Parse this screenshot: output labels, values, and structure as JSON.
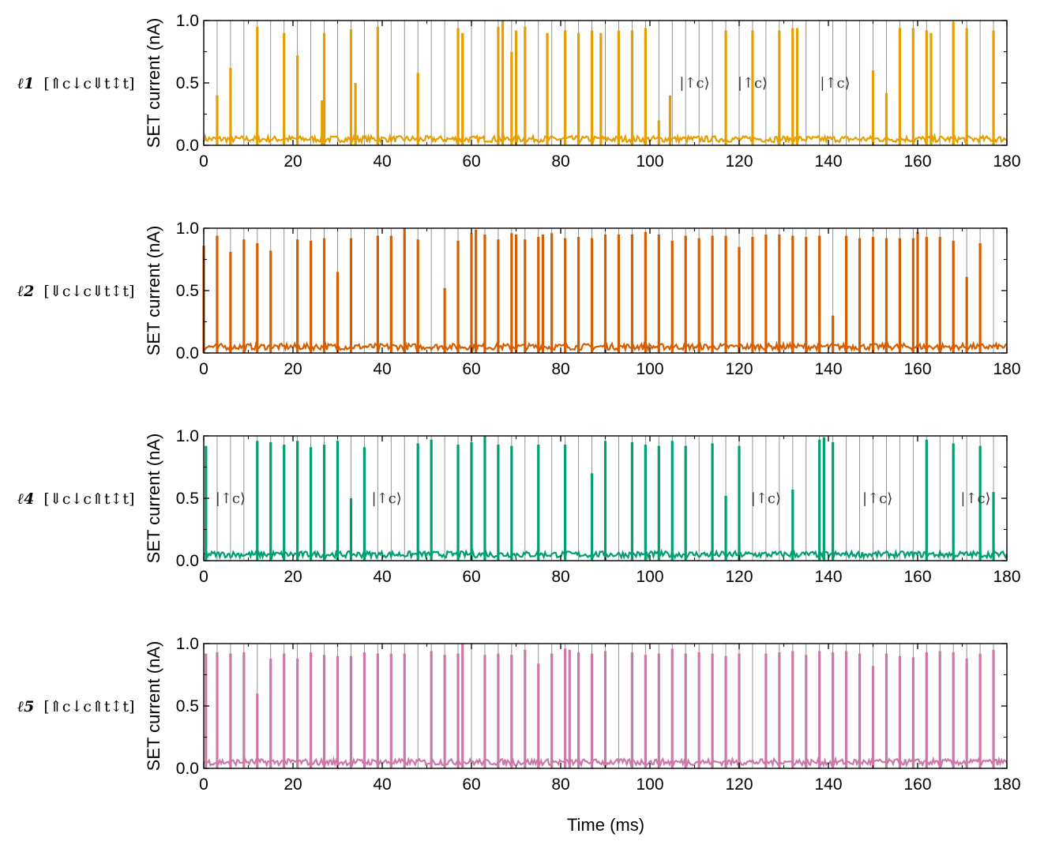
{
  "chart_data": {
    "type": "line",
    "xlabel": "Time (ms)",
    "ylabel": "SET current (nA)",
    "xlim": [
      0,
      180
    ],
    "ylim": [
      0,
      1.0
    ],
    "xticks": [
      0,
      20,
      40,
      60,
      80,
      100,
      120,
      140,
      160,
      180
    ],
    "xtick_labels": [
      "0",
      "20",
      "40",
      "60",
      "80",
      "100",
      "120",
      "140",
      "160",
      "180"
    ],
    "yticks": [
      0,
      0.5,
      1.0
    ],
    "ytick_labels": [
      "0.0",
      "0.5",
      "1.0"
    ],
    "pulse_markers_ms": [
      0,
      3,
      6,
      9,
      12,
      15,
      18,
      21,
      24,
      27,
      30,
      33,
      36,
      39,
      42,
      45,
      48,
      51,
      54,
      57,
      60,
      63,
      66,
      69,
      72,
      75,
      78,
      81,
      84,
      87,
      90,
      93,
      96,
      99,
      102,
      105,
      108,
      111,
      114,
      117,
      120,
      123,
      126,
      129,
      132,
      135,
      138,
      141,
      144,
      147,
      150,
      153,
      156,
      159,
      162,
      165,
      168,
      171,
      174,
      177,
      180
    ],
    "baseline_nA": 0.05,
    "panels": [
      {
        "label_main": "ℓ1",
        "label_state": "[⇑c↓c⇓t↕t]",
        "color": "#E69F00",
        "spikes": [
          [
            3,
            0.4
          ],
          [
            6,
            0.62
          ],
          [
            12,
            0.95
          ],
          [
            18,
            0.9
          ],
          [
            21,
            0.72
          ],
          [
            26.5,
            0.36
          ],
          [
            27,
            0.9
          ],
          [
            33,
            0.93
          ],
          [
            34,
            0.5
          ],
          [
            39,
            0.95
          ],
          [
            48,
            0.58
          ],
          [
            57,
            0.94
          ],
          [
            58,
            0.9
          ],
          [
            66,
            0.95
          ],
          [
            67,
            1.0
          ],
          [
            69,
            0.75
          ],
          [
            70,
            0.92
          ],
          [
            72,
            0.95
          ],
          [
            77,
            0.9
          ],
          [
            81,
            0.92
          ],
          [
            84,
            0.9
          ],
          [
            87,
            0.92
          ],
          [
            89,
            0.9
          ],
          [
            93,
            0.92
          ],
          [
            96,
            0.92
          ],
          [
            99,
            0.94
          ],
          [
            102,
            0.2
          ],
          [
            104.5,
            0.4
          ],
          [
            117,
            0.92
          ],
          [
            123,
            0.92
          ],
          [
            129,
            0.92
          ],
          [
            132,
            0.94
          ],
          [
            133,
            0.94
          ],
          [
            150,
            0.6
          ],
          [
            153,
            0.42
          ],
          [
            156,
            0.94
          ],
          [
            159,
            0.94
          ],
          [
            162,
            0.92
          ],
          [
            163,
            0.9
          ],
          [
            168,
            0.99
          ],
          [
            171,
            0.94
          ],
          [
            177,
            0.92
          ]
        ],
        "annotations": [
          {
            "text": "|↑c⟩",
            "x": 110,
            "y": 0.5
          },
          {
            "text": "|↑c⟩",
            "x": 123,
            "y": 0.5
          },
          {
            "text": "|↑c⟩",
            "x": 141.5,
            "y": 0.5
          }
        ]
      },
      {
        "label_main": "ℓ2",
        "label_state": "[⇓c↓c⇓t↕t]",
        "color": "#D55E00",
        "spikes": [
          [
            0,
            0.86
          ],
          [
            3,
            0.94
          ],
          [
            6,
            0.81
          ],
          [
            9,
            0.91
          ],
          [
            12,
            0.88
          ],
          [
            15,
            0.82
          ],
          [
            21,
            0.91
          ],
          [
            24,
            0.9
          ],
          [
            27,
            0.92
          ],
          [
            30,
            0.65
          ],
          [
            33,
            0.92
          ],
          [
            39,
            0.94
          ],
          [
            42,
            0.94
          ],
          [
            45,
            1.0
          ],
          [
            48,
            0.91
          ],
          [
            54,
            0.52
          ],
          [
            57,
            0.9
          ],
          [
            60,
            0.96
          ],
          [
            61,
            0.99
          ],
          [
            63,
            0.95
          ],
          [
            66,
            0.91
          ],
          [
            69,
            0.96
          ],
          [
            70,
            0.95
          ],
          [
            72,
            0.91
          ],
          [
            75,
            0.93
          ],
          [
            76,
            0.95
          ],
          [
            78,
            0.96
          ],
          [
            81,
            0.92
          ],
          [
            84,
            0.93
          ],
          [
            87,
            0.92
          ],
          [
            90,
            0.95
          ],
          [
            93,
            0.95
          ],
          [
            96,
            0.95
          ],
          [
            99,
            0.97
          ],
          [
            102,
            0.95
          ],
          [
            105,
            0.9
          ],
          [
            108,
            0.94
          ],
          [
            111,
            0.92
          ],
          [
            114,
            0.94
          ],
          [
            117,
            0.94
          ],
          [
            120,
            0.85
          ],
          [
            123,
            0.93
          ],
          [
            126,
            0.95
          ],
          [
            129,
            0.95
          ],
          [
            132,
            0.94
          ],
          [
            135,
            0.93
          ],
          [
            138,
            0.94
          ],
          [
            141,
            0.3
          ],
          [
            144,
            0.94
          ],
          [
            147,
            0.92
          ],
          [
            150,
            0.93
          ],
          [
            153,
            0.92
          ],
          [
            156,
            0.92
          ],
          [
            159,
            0.92
          ],
          [
            160,
            0.97
          ],
          [
            162,
            0.93
          ],
          [
            165,
            0.93
          ],
          [
            168,
            0.9
          ],
          [
            171,
            0.61
          ],
          [
            174,
            0.88
          ]
        ],
        "annotations": []
      },
      {
        "label_main": "ℓ4",
        "label_state": "[⇓c↓c⇑t↕t]",
        "color": "#009E73",
        "spikes": [
          [
            0.5,
            0.92
          ],
          [
            12,
            0.96
          ],
          [
            15,
            0.95
          ],
          [
            18,
            0.93
          ],
          [
            21,
            0.96
          ],
          [
            24,
            0.91
          ],
          [
            27,
            0.93
          ],
          [
            30,
            0.96
          ],
          [
            33,
            0.5
          ],
          [
            36,
            0.91
          ],
          [
            48,
            0.94
          ],
          [
            51,
            0.97
          ],
          [
            57,
            0.93
          ],
          [
            60,
            0.95
          ],
          [
            63,
            1.0
          ],
          [
            66,
            0.93
          ],
          [
            69,
            0.92
          ],
          [
            75,
            0.93
          ],
          [
            81,
            0.93
          ],
          [
            87,
            0.7
          ],
          [
            90,
            0.96
          ],
          [
            96,
            0.95
          ],
          [
            99,
            0.93
          ],
          [
            102,
            0.92
          ],
          [
            105,
            0.96
          ],
          [
            108,
            0.92
          ],
          [
            114,
            0.94
          ],
          [
            117,
            0.52
          ],
          [
            120,
            0.92
          ],
          [
            132,
            0.57
          ],
          [
            138,
            0.97
          ],
          [
            139,
            0.99
          ],
          [
            141,
            0.95
          ],
          [
            162,
            0.97
          ],
          [
            168,
            0.94
          ],
          [
            174,
            0.92
          ],
          [
            177,
            0.55
          ]
        ],
        "annotations": [
          {
            "text": "|↑c⟩",
            "x": 6,
            "y": 0.5
          },
          {
            "text": "|↑c⟩",
            "x": 41,
            "y": 0.5
          },
          {
            "text": "|↑c⟩",
            "x": 126,
            "y": 0.5
          },
          {
            "text": "|↑c⟩",
            "x": 151,
            "y": 0.5
          },
          {
            "text": "|↑c⟩",
            "x": 173,
            "y": 0.5
          }
        ]
      },
      {
        "label_main": "ℓ5",
        "label_state": "[⇑c↓c⇑t↕t]",
        "color": "#CC79A7",
        "spikes": [
          [
            0.5,
            0.92
          ],
          [
            3,
            0.93
          ],
          [
            6,
            0.92
          ],
          [
            9,
            0.93
          ],
          [
            12,
            0.6
          ],
          [
            15,
            0.88
          ],
          [
            18,
            0.92
          ],
          [
            21,
            0.88
          ],
          [
            24,
            0.93
          ],
          [
            27,
            0.91
          ],
          [
            30,
            0.9
          ],
          [
            33,
            0.9
          ],
          [
            36,
            0.93
          ],
          [
            39,
            0.92
          ],
          [
            42,
            0.92
          ],
          [
            45,
            0.92
          ],
          [
            51,
            0.94
          ],
          [
            54,
            0.91
          ],
          [
            57,
            0.92
          ],
          [
            58,
            1.0
          ],
          [
            63,
            0.91
          ],
          [
            66,
            0.92
          ],
          [
            69,
            0.91
          ],
          [
            72,
            0.95
          ],
          [
            75,
            0.84
          ],
          [
            78,
            0.92
          ],
          [
            81,
            0.96
          ],
          [
            82,
            0.95
          ],
          [
            84,
            0.93
          ],
          [
            87,
            0.92
          ],
          [
            90,
            0.94
          ],
          [
            96,
            0.93
          ],
          [
            99,
            0.91
          ],
          [
            102,
            0.92
          ],
          [
            105,
            0.96
          ],
          [
            108,
            0.92
          ],
          [
            111,
            0.93
          ],
          [
            114,
            0.92
          ],
          [
            117,
            0.9
          ],
          [
            120,
            0.92
          ],
          [
            126,
            0.92
          ],
          [
            129,
            0.93
          ],
          [
            132,
            0.94
          ],
          [
            135,
            0.91
          ],
          [
            138,
            0.94
          ],
          [
            141,
            0.93
          ],
          [
            144,
            0.94
          ],
          [
            147,
            0.92
          ],
          [
            150,
            0.82
          ],
          [
            153,
            0.92
          ],
          [
            156,
            0.9
          ],
          [
            159,
            0.89
          ],
          [
            162,
            0.93
          ],
          [
            165,
            0.94
          ],
          [
            168,
            0.93
          ],
          [
            171,
            0.88
          ],
          [
            174,
            0.92
          ],
          [
            177,
            0.95
          ]
        ],
        "annotations": []
      }
    ]
  }
}
